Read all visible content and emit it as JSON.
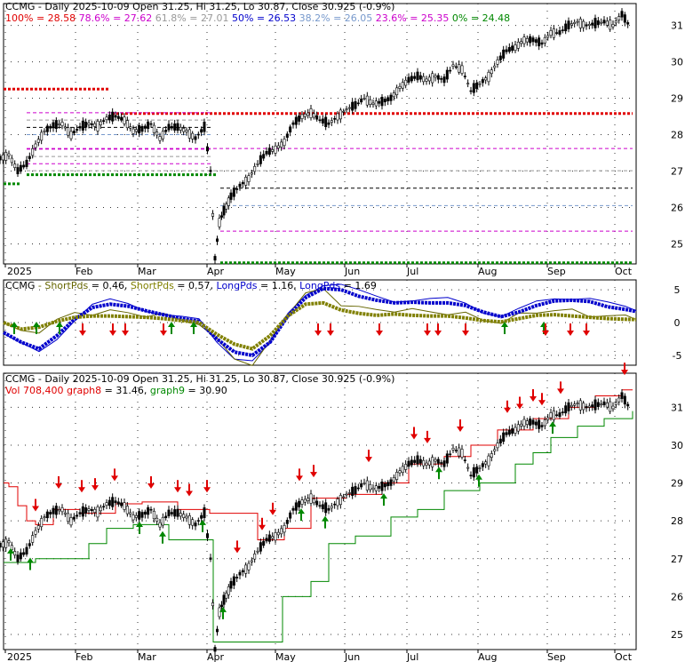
{
  "chart_data": [
    {
      "type": "candlestick",
      "panel": "price",
      "title": {
        "symbol": "CCMG",
        "text": " - Daily 2025-10-09 Open 31.25, Hi 31.25, Lo 30.87, Close 30.925 (-0.9%)"
      },
      "fib_labels": [
        {
          "text": "100% = 28.58",
          "color": "#e00000"
        },
        {
          "text": " 78.6% = 27.62",
          "color": "#cc00cc"
        },
        {
          "text": " 61.8% = 27.01",
          "color": "#999999"
        },
        {
          "text": " 50% = 26.53",
          "color": "#0000cc"
        },
        {
          "text": " 38.2% = 26.05",
          "color": "#7799cc"
        },
        {
          "text": " 23.6% = 25.35",
          "color": "#cc00cc"
        },
        {
          "text": " 0% = 24.48",
          "color": "#008800"
        }
      ],
      "fib_levels": [
        28.58,
        27.62,
        27.01,
        26.53,
        26.05,
        25.35,
        24.48
      ],
      "y_ticks": [
        25,
        26,
        27,
        28,
        29,
        30,
        31
      ],
      "ylim": [
        24.45,
        31.6
      ],
      "x_ticks": [
        "2025",
        "Feb",
        "Mar",
        "Apr",
        "May",
        "Jun",
        "Jul",
        "Aug",
        "Sep",
        "Oct"
      ],
      "close_points": [
        [
          0,
          27.35
        ],
        [
          10,
          27.45
        ],
        [
          20,
          27.0
        ],
        [
          30,
          27.2
        ],
        [
          40,
          27.7
        ],
        [
          50,
          28.1
        ],
        [
          60,
          28.25
        ],
        [
          70,
          28.3
        ],
        [
          80,
          28.0
        ],
        [
          90,
          28.2
        ],
        [
          100,
          28.3
        ],
        [
          110,
          28.25
        ],
        [
          120,
          28.45
        ],
        [
          130,
          28.5
        ],
        [
          140,
          28.4
        ],
        [
          150,
          28.1
        ],
        [
          160,
          28.15
        ],
        [
          170,
          28.3
        ],
        [
          180,
          27.9
        ],
        [
          190,
          28.2
        ],
        [
          200,
          28.2
        ],
        [
          210,
          28.1
        ],
        [
          220,
          27.9
        ],
        [
          230,
          28.2
        ],
        [
          237,
          27.0
        ],
        [
          242,
          24.6
        ],
        [
          247,
          25.6
        ],
        [
          252,
          25.9
        ],
        [
          260,
          26.3
        ],
        [
          270,
          26.6
        ],
        [
          280,
          26.8
        ],
        [
          290,
          27.2
        ],
        [
          300,
          27.5
        ],
        [
          310,
          27.6
        ],
        [
          320,
          27.8
        ],
        [
          330,
          28.3
        ],
        [
          340,
          28.5
        ],
        [
          350,
          28.6
        ],
        [
          360,
          28.4
        ],
        [
          370,
          28.3
        ],
        [
          380,
          28.5
        ],
        [
          390,
          28.7
        ],
        [
          400,
          28.8
        ],
        [
          410,
          29.0
        ],
        [
          420,
          28.85
        ],
        [
          430,
          28.9
        ],
        [
          440,
          29.0
        ],
        [
          450,
          29.3
        ],
        [
          460,
          29.5
        ],
        [
          470,
          29.6
        ],
        [
          480,
          29.5
        ],
        [
          490,
          29.6
        ],
        [
          500,
          29.5
        ],
        [
          510,
          29.9
        ],
        [
          520,
          29.8
        ],
        [
          530,
          29.2
        ],
        [
          540,
          29.4
        ],
        [
          550,
          29.6
        ],
        [
          560,
          30.0
        ],
        [
          570,
          30.3
        ],
        [
          580,
          30.4
        ],
        [
          590,
          30.6
        ],
        [
          600,
          30.6
        ],
        [
          610,
          30.5
        ],
        [
          620,
          30.8
        ],
        [
          630,
          30.8
        ],
        [
          640,
          31.0
        ],
        [
          650,
          31.1
        ],
        [
          660,
          31.0
        ],
        [
          670,
          31.05
        ],
        [
          680,
          31.1
        ],
        [
          690,
          31.0
        ],
        [
          700,
          31.3
        ],
        [
          710,
          30.93
        ]
      ]
    },
    {
      "type": "line",
      "panel": "oscillator",
      "title": {
        "symbol": "CCMG"
      },
      "legend": [
        {
          "label": " - ShortPds",
          "value": " = 0.46,",
          "color": "#666600"
        },
        {
          "label": " ShortPds",
          "value": " = 0.57,",
          "color": "#808000"
        },
        {
          "label": " LongPds",
          "value": " = 1.16,",
          "color": "#0000cc"
        },
        {
          "label": " LongPds",
          "value": " = 1.69",
          "color": "#0000cc"
        }
      ],
      "y_ticks": [
        "5",
        "0",
        "-5"
      ],
      "ylim": [
        -6.5,
        6.5
      ],
      "long_pds": [
        [
          0,
          -1.5
        ],
        [
          20,
          -3.0
        ],
        [
          40,
          -4.0
        ],
        [
          60,
          -2.0
        ],
        [
          80,
          0.5
        ],
        [
          100,
          2.3
        ],
        [
          120,
          2.8
        ],
        [
          140,
          2.5
        ],
        [
          160,
          1.8
        ],
        [
          180,
          1.2
        ],
        [
          200,
          0.6
        ],
        [
          220,
          0.2
        ],
        [
          240,
          -2.5
        ],
        [
          260,
          -4.5
        ],
        [
          280,
          -5.0
        ],
        [
          300,
          -3.0
        ],
        [
          320,
          1.0
        ],
        [
          340,
          3.8
        ],
        [
          360,
          5.2
        ],
        [
          380,
          5.0
        ],
        [
          400,
          4.0
        ],
        [
          420,
          3.4
        ],
        [
          440,
          3.0
        ],
        [
          460,
          3.1
        ],
        [
          480,
          3.0
        ],
        [
          500,
          3.0
        ],
        [
          520,
          2.6
        ],
        [
          540,
          1.6
        ],
        [
          560,
          0.9
        ],
        [
          580,
          1.6
        ],
        [
          600,
          2.6
        ],
        [
          620,
          3.3
        ],
        [
          640,
          3.4
        ],
        [
          660,
          3.2
        ],
        [
          680,
          2.4
        ],
        [
          700,
          2.0
        ],
        [
          712,
          1.69
        ]
      ],
      "short_pds": [
        [
          0,
          0.0
        ],
        [
          20,
          -1.0
        ],
        [
          40,
          -0.7
        ],
        [
          60,
          0.2
        ],
        [
          80,
          0.8
        ],
        [
          100,
          1.0
        ],
        [
          120,
          1.0
        ],
        [
          140,
          0.9
        ],
        [
          160,
          0.8
        ],
        [
          180,
          0.6
        ],
        [
          200,
          0.3
        ],
        [
          220,
          0.0
        ],
        [
          240,
          -1.8
        ],
        [
          260,
          -3.3
        ],
        [
          280,
          -4.0
        ],
        [
          300,
          -2.0
        ],
        [
          320,
          1.0
        ],
        [
          340,
          2.8
        ],
        [
          360,
          3.0
        ],
        [
          380,
          1.9
        ],
        [
          400,
          1.4
        ],
        [
          420,
          1.1
        ],
        [
          440,
          1.3
        ],
        [
          460,
          1.1
        ],
        [
          480,
          1.0
        ],
        [
          500,
          1.0
        ],
        [
          520,
          0.7
        ],
        [
          540,
          0.3
        ],
        [
          560,
          0.1
        ],
        [
          580,
          0.6
        ],
        [
          600,
          1.1
        ],
        [
          620,
          1.2
        ],
        [
          640,
          1.0
        ],
        [
          660,
          0.8
        ],
        [
          680,
          0.6
        ],
        [
          700,
          0.5
        ],
        [
          712,
          0.46
        ]
      ],
      "up_arrows_x": [
        16,
        41,
        67,
        193,
        218,
        568,
        612
      ],
      "down_arrows_x": [
        93,
        127,
        141,
        184,
        358,
        372,
        427,
        481,
        493,
        524,
        614,
        642,
        660
      ]
    },
    {
      "type": "candlestick",
      "panel": "volume_stops",
      "title": {
        "symbol": "CCMG",
        "text": " - Daily 2025-10-09 Open 31.25, Hi 31.25, Lo 30.87, Close 30.925 (-0.9%)"
      },
      "legend": [
        {
          "label": "Vol 708,400",
          "color": "#e00000"
        },
        {
          "label": " graph8",
          "value": " = 31.46,",
          "color": "#e00000"
        },
        {
          "label": " graph9",
          "value": " = 30.90",
          "color": "#008800"
        }
      ],
      "y_ticks": [
        25,
        26,
        27,
        28,
        29,
        30,
        31
      ],
      "ylim": [
        24.6,
        31.9
      ],
      "x_ticks": [
        "2025",
        "Feb",
        "Mar",
        "Apr",
        "May",
        "Jun",
        "Jul",
        "Aug",
        "Sep",
        "Oct"
      ],
      "graph8_last": 31.46,
      "graph9_last": 30.9,
      "down_arrows_x": [
        40,
        66,
        92,
        107,
        129,
        170,
        200,
        213,
        233,
        267,
        295,
        307,
        337,
        353,
        415,
        466,
        481,
        518,
        571,
        585,
        600,
        610,
        631,
        703
      ],
      "up_arrows_x": [
        12,
        34,
        157,
        183,
        228,
        251,
        339,
        366,
        432,
        494,
        539,
        622
      ]
    }
  ]
}
